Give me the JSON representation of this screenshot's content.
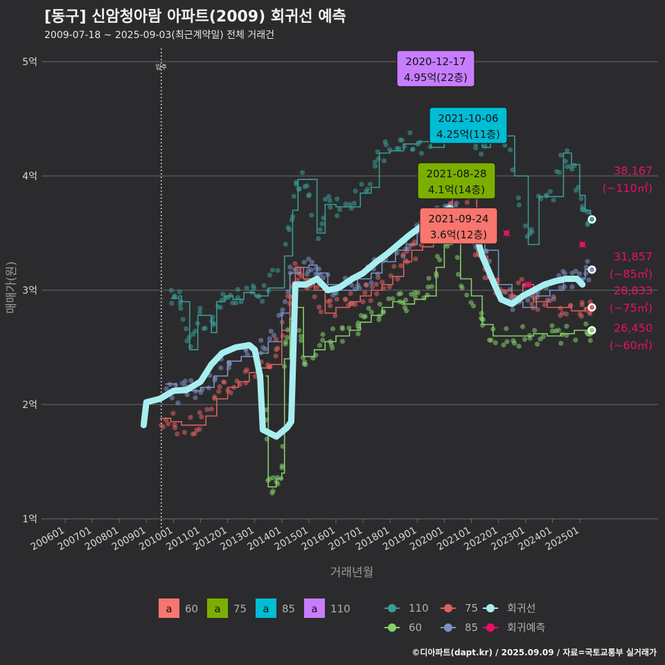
{
  "title": "[동구] 신암청아람 아파트(2009) 회귀선 예측",
  "subtitle": "2009-07-18 ~ 2025-09-03(최근계약일) 전체 거래건",
  "footer": "©디아파트(dapt.kr) / 2025.09.09 / 자료=국토교통부 실거래가",
  "chart_data": {
    "type": "scatter",
    "xlabel": "거래년월",
    "ylabel": "매매가(원)",
    "ylim": [
      1,
      5
    ],
    "y_ticks": [
      "1억",
      "2억",
      "3억",
      "4억",
      "5억"
    ],
    "x_ticks": [
      "200601",
      "200701",
      "200801",
      "200901",
      "201001",
      "201101",
      "201201",
      "201301",
      "201401",
      "201501",
      "201601",
      "201701",
      "201801",
      "201901",
      "202001",
      "202101",
      "202201",
      "202301",
      "202401",
      "202501"
    ],
    "move_in_label": "입주",
    "move_in_date": "2009-07",
    "colors": {
      "s110": "#3a9c96",
      "s85": "#7e93c4",
      "s75": "#e06060",
      "s60": "#86d06a",
      "regression": "#a8eef0",
      "pred": "#e8106a"
    },
    "series": [
      {
        "name": "110",
        "color": "#3a9c96",
        "points": [
          [
            2009.9,
            2.93
          ],
          [
            2010.2,
            2.95
          ],
          [
            2010.3,
            2.9
          ],
          [
            2010.6,
            2.48
          ],
          [
            2010.9,
            2.78
          ],
          [
            2011.4,
            2.63
          ],
          [
            2011.6,
            2.9
          ],
          [
            2011.9,
            2.95
          ],
          [
            2012.2,
            2.92
          ],
          [
            2012.6,
            2.98
          ],
          [
            2013.0,
            2.95
          ],
          [
            2013.5,
            3.02
          ],
          [
            2014.1,
            3.3
          ],
          [
            2014.4,
            3.7
          ],
          [
            2014.6,
            3.97
          ],
          [
            2014.9,
            3.97
          ],
          [
            2015.3,
            3.5
          ],
          [
            2015.6,
            3.75
          ],
          [
            2016.0,
            3.73
          ],
          [
            2016.5,
            3.73
          ],
          [
            2016.9,
            3.85
          ],
          [
            2017.3,
            3.9
          ],
          [
            2017.6,
            4.2
          ],
          [
            2018.0,
            4.22
          ],
          [
            2018.5,
            4.28
          ],
          [
            2019.0,
            4.3
          ],
          [
            2019.5,
            4.25
          ],
          [
            2020.0,
            4.4
          ],
          [
            2020.5,
            4.42
          ],
          [
            2021.0,
            4.38
          ],
          [
            2021.4,
            4.25
          ],
          [
            2021.7,
            4.42
          ],
          [
            2022.2,
            4.35
          ],
          [
            2022.6,
            4.0
          ],
          [
            2023.1,
            3.4
          ],
          [
            2023.5,
            3.82
          ],
          [
            2024.0,
            3.82
          ],
          [
            2024.4,
            4.2
          ],
          [
            2024.7,
            4.1
          ],
          [
            2025.0,
            3.83
          ],
          [
            2025.2,
            3.7
          ],
          [
            2025.4,
            3.62
          ]
        ]
      },
      {
        "name": "85",
        "color": "#7e93c4",
        "points": [
          [
            2009.7,
            2.18
          ],
          [
            2010.1,
            2.1
          ],
          [
            2010.5,
            2.12
          ],
          [
            2011.0,
            2.15
          ],
          [
            2011.5,
            2.25
          ],
          [
            2012.0,
            2.38
          ],
          [
            2012.5,
            2.42
          ],
          [
            2013.0,
            2.45
          ],
          [
            2013.5,
            2.55
          ],
          [
            2014.0,
            2.8
          ],
          [
            2014.3,
            3.15
          ],
          [
            2014.7,
            3.2
          ],
          [
            2015.0,
            3.22
          ],
          [
            2015.3,
            3.15
          ],
          [
            2015.7,
            3.05
          ],
          [
            2016.2,
            3.0
          ],
          [
            2016.8,
            3.1
          ],
          [
            2017.3,
            3.15
          ],
          [
            2017.7,
            3.25
          ],
          [
            2018.2,
            3.35
          ],
          [
            2018.6,
            3.4
          ],
          [
            2019.0,
            3.5
          ],
          [
            2019.4,
            3.55
          ],
          [
            2019.8,
            3.65
          ],
          [
            2020.2,
            3.7
          ],
          [
            2020.5,
            3.72
          ],
          [
            2021.0,
            3.5
          ],
          [
            2021.5,
            3.35
          ],
          [
            2022.0,
            3.05
          ],
          [
            2022.5,
            2.9
          ],
          [
            2022.9,
            2.85
          ],
          [
            2023.4,
            2.95
          ],
          [
            2023.9,
            3.0
          ],
          [
            2024.4,
            3.08
          ],
          [
            2024.8,
            3.1
          ],
          [
            2025.2,
            3.18
          ],
          [
            2025.4,
            3.18
          ]
        ]
      },
      {
        "name": "75",
        "color": "#e06060",
        "points": [
          [
            2009.5,
            1.88
          ],
          [
            2009.9,
            1.85
          ],
          [
            2010.3,
            1.82
          ],
          [
            2010.8,
            1.82
          ],
          [
            2011.2,
            1.9
          ],
          [
            2011.6,
            2.05
          ],
          [
            2012.0,
            2.15
          ],
          [
            2012.4,
            2.2
          ],
          [
            2012.8,
            2.28
          ],
          [
            2013.2,
            2.32
          ],
          [
            2013.6,
            2.35
          ],
          [
            2014.0,
            2.65
          ],
          [
            2014.3,
            2.95
          ],
          [
            2014.5,
            3.2
          ],
          [
            2014.8,
            3.1
          ],
          [
            2015.2,
            3.0
          ],
          [
            2015.6,
            2.8
          ],
          [
            2016.0,
            2.85
          ],
          [
            2016.5,
            2.9
          ],
          [
            2016.9,
            2.95
          ],
          [
            2017.3,
            3.0
          ],
          [
            2017.7,
            3.05
          ],
          [
            2018.1,
            3.12
          ],
          [
            2018.5,
            3.25
          ],
          [
            2018.8,
            3.35
          ],
          [
            2019.2,
            3.38
          ],
          [
            2019.6,
            3.42
          ],
          [
            2019.9,
            3.6
          ],
          [
            2020.1,
            3.68
          ],
          [
            2020.3,
            3.92
          ],
          [
            2020.5,
            3.92
          ],
          [
            2020.8,
            3.92
          ],
          [
            2021.2,
            3.3
          ],
          [
            2021.6,
            3.1
          ],
          [
            2022.0,
            3.0
          ],
          [
            2022.5,
            2.95
          ],
          [
            2022.9,
            3.05
          ],
          [
            2023.3,
            2.9
          ],
          [
            2023.8,
            2.85
          ],
          [
            2024.3,
            2.85
          ],
          [
            2024.7,
            2.82
          ],
          [
            2025.2,
            2.85
          ],
          [
            2025.4,
            2.85
          ]
        ]
      },
      {
        "name": "60",
        "color": "#86d06a",
        "points": [
          [
            2013.4,
            2.25
          ],
          [
            2013.5,
            1.28
          ],
          [
            2013.8,
            1.35
          ],
          [
            2014.0,
            1.4
          ],
          [
            2014.1,
            2.4
          ],
          [
            2014.3,
            2.75
          ],
          [
            2014.5,
            2.85
          ],
          [
            2014.8,
            2.42
          ],
          [
            2015.2,
            2.48
          ],
          [
            2015.6,
            2.55
          ],
          [
            2016.0,
            2.6
          ],
          [
            2016.5,
            2.65
          ],
          [
            2016.9,
            2.72
          ],
          [
            2017.3,
            2.78
          ],
          [
            2017.7,
            2.85
          ],
          [
            2018.1,
            2.9
          ],
          [
            2018.5,
            2.88
          ],
          [
            2018.9,
            2.92
          ],
          [
            2019.3,
            2.95
          ],
          [
            2019.7,
            3.2
          ],
          [
            2020.0,
            3.4
          ],
          [
            2020.3,
            3.5
          ],
          [
            2020.6,
            3.1
          ],
          [
            2021.0,
            2.95
          ],
          [
            2021.4,
            2.7
          ],
          [
            2021.8,
            2.6
          ],
          [
            2022.3,
            2.6
          ],
          [
            2022.8,
            2.6
          ],
          [
            2023.3,
            2.62
          ],
          [
            2023.8,
            2.6
          ],
          [
            2024.3,
            2.62
          ],
          [
            2024.8,
            2.65
          ],
          [
            2025.3,
            2.65
          ],
          [
            2025.4,
            2.65
          ]
        ]
      }
    ],
    "regression": [
      [
        2008.9,
        1.82
      ],
      [
        2009.0,
        2.02
      ],
      [
        2009.5,
        2.05
      ],
      [
        2010.0,
        2.12
      ],
      [
        2010.5,
        2.13
      ],
      [
        2011.0,
        2.2
      ],
      [
        2011.4,
        2.35
      ],
      [
        2011.8,
        2.45
      ],
      [
        2012.3,
        2.5
      ],
      [
        2012.8,
        2.52
      ],
      [
        2013.0,
        2.48
      ],
      [
        2013.2,
        2.25
      ],
      [
        2013.3,
        1.78
      ],
      [
        2013.8,
        1.72
      ],
      [
        2014.2,
        1.8
      ],
      [
        2014.35,
        1.85
      ],
      [
        2014.5,
        3.05
      ],
      [
        2014.9,
        3.05
      ],
      [
        2015.3,
        3.1
      ],
      [
        2015.7,
        3.0
      ],
      [
        2016.1,
        3.02
      ],
      [
        2016.6,
        3.1
      ],
      [
        2017.0,
        3.15
      ],
      [
        2017.5,
        3.25
      ],
      [
        2017.9,
        3.32
      ],
      [
        2018.3,
        3.4
      ],
      [
        2018.7,
        3.48
      ],
      [
        2019.1,
        3.55
      ],
      [
        2019.5,
        3.62
      ],
      [
        2019.9,
        3.68
      ],
      [
        2020.2,
        3.72
      ],
      [
        2020.4,
        3.68
      ],
      [
        2020.8,
        3.62
      ],
      [
        2021.1,
        3.55
      ],
      [
        2021.4,
        3.3
      ],
      [
        2021.8,
        3.08
      ],
      [
        2022.1,
        2.92
      ],
      [
        2022.5,
        2.88
      ],
      [
        2022.9,
        2.95
      ],
      [
        2023.3,
        3.0
      ],
      [
        2023.7,
        3.05
      ],
      [
        2024.1,
        3.08
      ],
      [
        2024.5,
        3.1
      ],
      [
        2024.9,
        3.1
      ],
      [
        2025.1,
        3.05
      ]
    ],
    "pred_points": [
      {
        "x": 2022.3,
        "y": 3.5
      },
      {
        "x": 2025.1,
        "y": 3.4
      },
      {
        "x": 2023.1,
        "y": 3.05
      }
    ],
    "end_labels": [
      {
        "series": "110",
        "value": "38,167",
        "area": "(~110㎡)",
        "y": 3.83
      },
      {
        "series": "85",
        "value": "31,857",
        "area": "(~85㎡)",
        "y": 3.19
      },
      {
        "series": "75",
        "value": "28,833",
        "area": "(~75㎡)",
        "y": 2.89
      },
      {
        "series": "60",
        "value": "26,450",
        "area": "(~60㎡)",
        "y": 2.65
      }
    ],
    "callouts": [
      {
        "date": "2020-12-17",
        "price": "4.95억(22층)",
        "series": "110",
        "color": "#c77dff",
        "x": 2020.96,
        "y": 4.95
      },
      {
        "date": "2021-10-06",
        "price": "4.25억(11층)",
        "series": "85",
        "color": "#00bcd4",
        "x": 2021.76,
        "y": 4.25
      },
      {
        "date": "2021-08-28",
        "price": "4.1억(14층)",
        "series": "75",
        "color": "#7cae00",
        "x": 2021.65,
        "y": 4.1
      },
      {
        "date": "2021-09-24",
        "price": "3.6억(12층)",
        "series": "60",
        "color": "#f8766d",
        "x": 2021.73,
        "y": 3.6
      }
    ],
    "legend_area": {
      "items": [
        {
          "label": "60",
          "color": "#f8766d"
        },
        {
          "label": "75",
          "color": "#7cae00"
        },
        {
          "label": "85",
          "color": "#00bcd4"
        },
        {
          "label": "110",
          "color": "#c77dff"
        }
      ],
      "glyph": "a"
    },
    "legend_lines": {
      "items": [
        {
          "label": "110",
          "color": "#3a9c96"
        },
        {
          "label": "75",
          "color": "#e06060"
        },
        {
          "label": "회귀선",
          "color": "#a8eef0"
        },
        {
          "label": "60",
          "color": "#86d06a"
        },
        {
          "label": "85",
          "color": "#7e93c4"
        },
        {
          "label": "회귀예측",
          "color": "#e8106a"
        }
      ]
    }
  }
}
